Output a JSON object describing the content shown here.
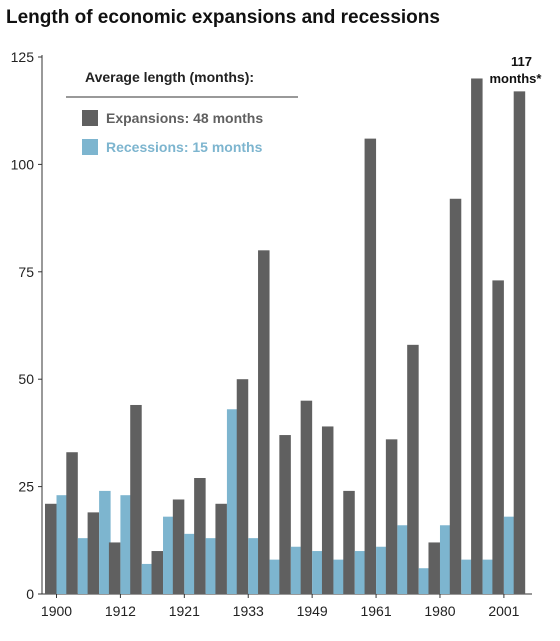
{
  "chart_data": {
    "type": "bar",
    "title": "Length of economic expansions and recessions",
    "xlabel": "",
    "ylabel": "",
    "ylim": [
      0,
      125
    ],
    "yticks": [
      0,
      25,
      50,
      75,
      100,
      125
    ],
    "xtick_labels": [
      {
        "label": "1900",
        "index": 0
      },
      {
        "label": "1912",
        "index": 3
      },
      {
        "label": "1921",
        "index": 6
      },
      {
        "label": "1933",
        "index": 9
      },
      {
        "label": "1949",
        "index": 12
      },
      {
        "label": "1961",
        "index": 15
      },
      {
        "label": "1980",
        "index": 18
      },
      {
        "label": "2001",
        "index": 21
      }
    ],
    "num_cycles": 23,
    "legend": {
      "title": "Average length (months):",
      "placement": "top-left"
    },
    "series": [
      {
        "name": "Expansions: 48 months",
        "color": "#606060",
        "values": [
          21,
          33,
          19,
          12,
          44,
          10,
          22,
          27,
          21,
          50,
          80,
          37,
          45,
          39,
          24,
          106,
          36,
          58,
          12,
          92,
          120,
          73,
          117
        ]
      },
      {
        "name": "Recessions: 15 months",
        "color": "#7db5cf",
        "values": [
          23,
          13,
          24,
          23,
          7,
          18,
          14,
          13,
          43,
          13,
          8,
          11,
          10,
          8,
          10,
          11,
          16,
          6,
          16,
          8,
          8,
          18,
          null
        ]
      }
    ],
    "annotations": [
      {
        "text_line1": "117",
        "text_line2": "months*",
        "series": 0,
        "index": 22
      }
    ],
    "grid": false
  }
}
